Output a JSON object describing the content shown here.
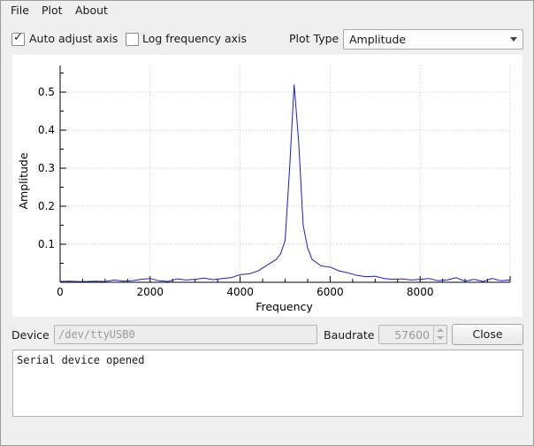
{
  "menu": {
    "file": "File",
    "plot": "Plot",
    "about": "About"
  },
  "options": {
    "auto_adjust": {
      "label": "Auto adjust axis",
      "checked": true
    },
    "log_freq": {
      "label": "Log frequency axis",
      "checked": false
    },
    "plot_type_label": "Plot Type",
    "plot_type_value": "Amplitude"
  },
  "device": {
    "label": "Device",
    "value": "/dev/ttyUSB0"
  },
  "baudrate": {
    "label": "Baudrate",
    "value": "57600"
  },
  "close_label": "Close",
  "log_text": "Serial device opened",
  "colors": {
    "series": "#1c1cc8",
    "grid": "#c8c8c8"
  },
  "chart_data": {
    "type": "line",
    "xlabel": "Frequency",
    "ylabel": "Amplitude",
    "xlim": [
      0,
      10000
    ],
    "ylim": [
      0,
      0.57
    ],
    "grid": true,
    "x_ticks": [
      0,
      2000,
      4000,
      6000,
      8000
    ],
    "y_ticks": [
      0.1,
      0.2,
      0.3,
      0.4,
      0.5
    ],
    "series": [
      {
        "x": [
          0,
          200,
          400,
          600,
          800,
          1000,
          1200,
          1400,
          1600,
          1800,
          2000,
          2200,
          2400,
          2600,
          2800,
          3000,
          3200,
          3400,
          3600,
          3800,
          4000,
          4200,
          4400,
          4600,
          4800,
          4900,
          5000,
          5100,
          5200,
          5300,
          5400,
          5500,
          5600,
          5800,
          6000,
          6200,
          6400,
          6600,
          6800,
          7000,
          7200,
          7400,
          7600,
          7800,
          8000,
          8200,
          8400,
          8600,
          8800,
          9000,
          9200,
          9400,
          9600,
          9800,
          10000
        ],
        "y": [
          0.002,
          0.003,
          0.002,
          0.002,
          0.003,
          0.002,
          0.006,
          0.003,
          0.004,
          0.008,
          0.01,
          0.004,
          0.002,
          0.009,
          0.006,
          0.008,
          0.011,
          0.007,
          0.01,
          0.012,
          0.02,
          0.022,
          0.03,
          0.045,
          0.06,
          0.075,
          0.11,
          0.3,
          0.52,
          0.37,
          0.15,
          0.09,
          0.06,
          0.043,
          0.04,
          0.03,
          0.025,
          0.018,
          0.015,
          0.016,
          0.01,
          0.008,
          0.009,
          0.006,
          0.008,
          0.01,
          0.004,
          0.006,
          0.012,
          0.003,
          0.008,
          0.002,
          0.01,
          0.004,
          0.006
        ]
      }
    ]
  }
}
